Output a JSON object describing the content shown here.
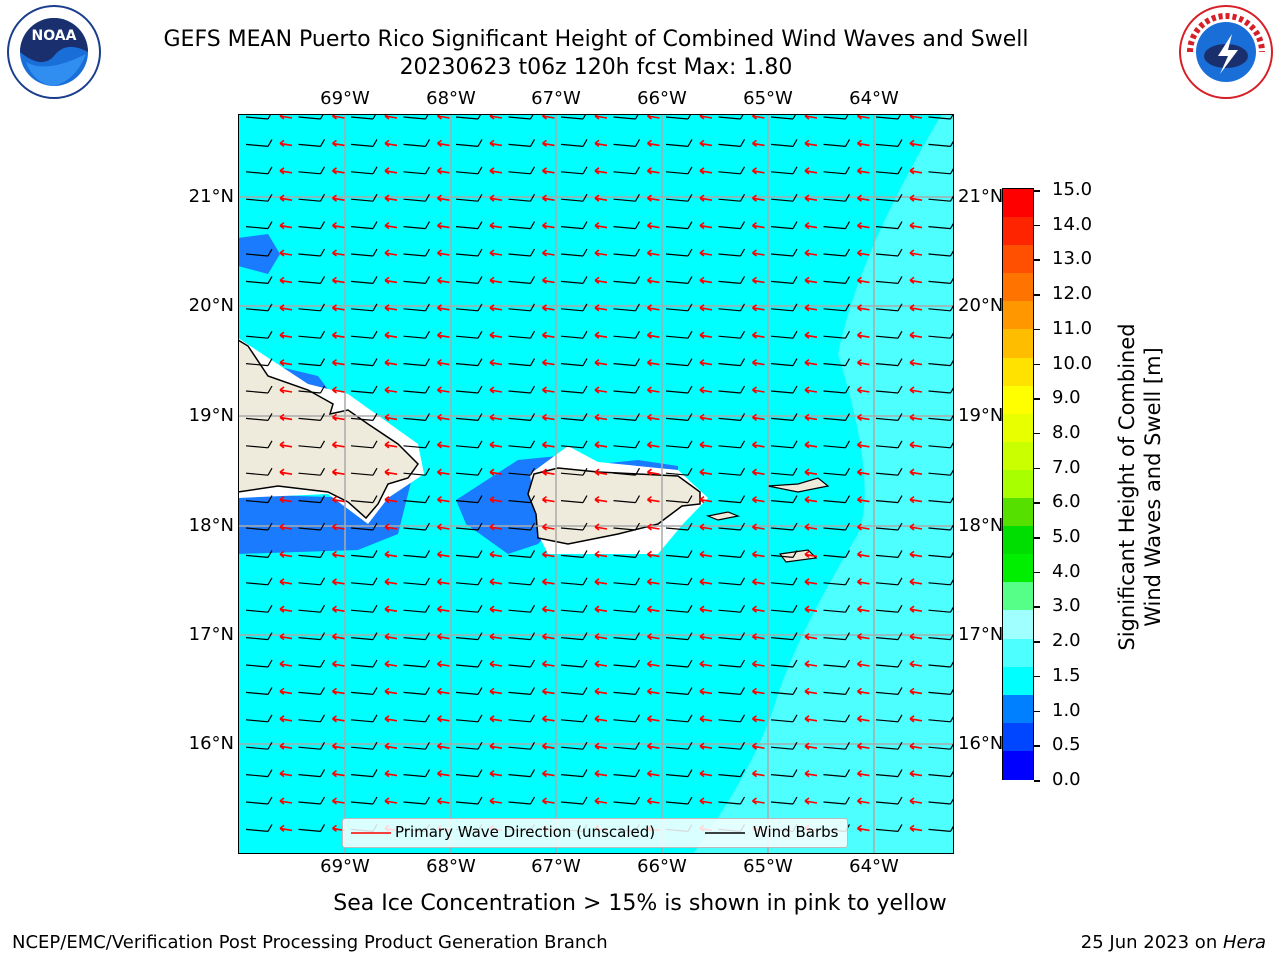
{
  "title": {
    "line1": "GEFS MEAN Puerto Rico Significant Height of Combined Wind Waves and Swell",
    "line2": "20230623 t06z 120h fcst   Max: 1.80"
  },
  "logos": {
    "left": {
      "name": "noaa-logo",
      "text": "NOAA"
    },
    "right": {
      "name": "nws-logo",
      "text": "NATIONAL WEATHER SERVICE"
    }
  },
  "map": {
    "lon_ticks": [
      "69°W",
      "68°W",
      "67°W",
      "66°W",
      "65°W",
      "64°W"
    ],
    "lat_ticks": [
      "21°N",
      "20°N",
      "19°N",
      "18°N",
      "17°N",
      "16°N"
    ],
    "land_color": "#efebdc",
    "sea_color": "#00ffff",
    "barb_color": "#000000",
    "wave_dir_color": "#ff0000"
  },
  "colorbar": {
    "label_line1": "Significant Height of Combined",
    "label_line2": "Wind Waves and Swell [m]",
    "ticks": [
      "15.0",
      "14.0",
      "13.0",
      "12.0",
      "11.0",
      "10.0",
      "9.0",
      "8.0",
      "7.0",
      "6.0",
      "5.0",
      "4.0",
      "3.0",
      "2.0",
      "1.5",
      "1.0",
      "0.5",
      "0.0"
    ],
    "colors": [
      "#ff0000",
      "#ff2400",
      "#ff4f00",
      "#ff7400",
      "#ff9800",
      "#ffbd00",
      "#ffe200",
      "#ffff00",
      "#e8ff00",
      "#caff00",
      "#a8ff00",
      "#55e000",
      "#00dd00",
      "#00ee00",
      "#55ff88",
      "#a0ffff",
      "#4dffff",
      "#00ffff",
      "#0080ff",
      "#0045ff",
      "#0000ff"
    ]
  },
  "legend": {
    "wave_dir_label": "Primary Wave Direction (unscaled)",
    "barbs_label": "Wind Barbs"
  },
  "note": "Sea Ice Concentration > 15% is shown in pink to yellow",
  "footer": {
    "left": "NCEP/EMC/Verification Post Processing Product Generation Branch",
    "right_prefix": "25 Jun 2023 on ",
    "right_host": "Hera"
  }
}
